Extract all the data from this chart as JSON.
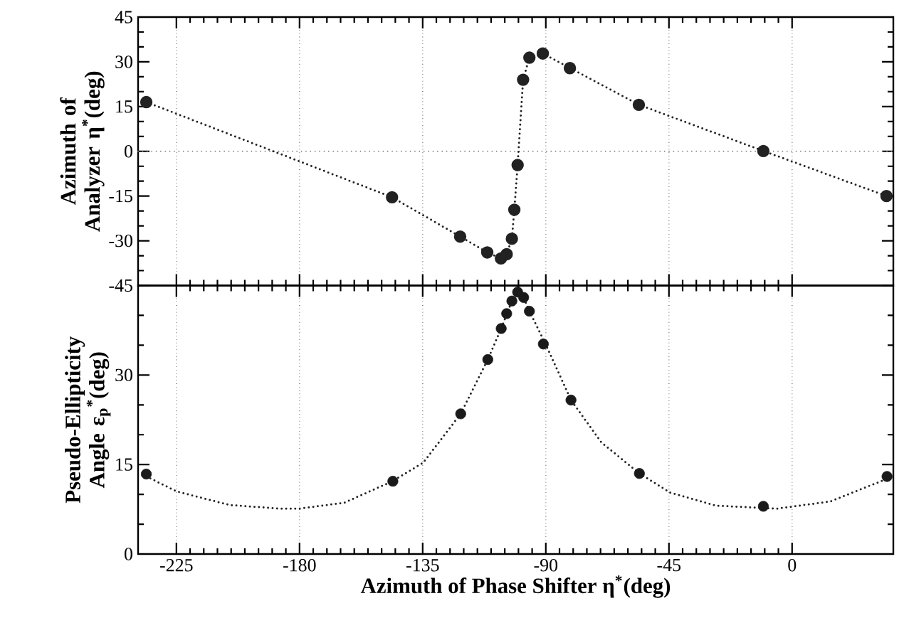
{
  "chart_data": [
    {
      "type": "line",
      "ylabel": "Azimuth of Analyzer η$^{*}$(deg)",
      "xlim": [
        -239,
        37
      ],
      "ylim": [
        -45,
        45
      ],
      "xticks": [
        -225,
        -180,
        -135,
        -90,
        -45,
        0
      ],
      "yticks": [
        -45,
        -30,
        -15,
        0,
        15,
        30,
        45
      ],
      "tick_labels": "y",
      "grid": "x",
      "marker": "circle",
      "line_style": "dotted",
      "ref_lines": [
        {
          "axis": "y",
          "value": 0,
          "line_style": "dotted",
          "color": "#888888"
        }
      ],
      "series": [
        {
          "color": "#222222",
          "x": [
            -236,
            -146.2,
            -121.3,
            -111.4,
            -106.4,
            -104.3,
            -102.4,
            -101.5,
            -100.3,
            -98.3,
            -96.0,
            -91.1,
            -81.2,
            -56.0,
            -10.5,
            34.5
          ],
          "values": [
            16.5,
            -15.4,
            -28.6,
            -33.9,
            -35.9,
            -34.5,
            -29.3,
            -19.6,
            -4.6,
            24.0,
            31.4,
            32.8,
            27.9,
            15.6,
            0.1,
            -15.0
          ]
        }
      ]
    },
    {
      "type": "scatter",
      "ylabel": "Pseudo-Ellipticity Angle ε$_{p}$$^{*}$(deg)",
      "xlabel": "Azimuth of Phase Shifter η$^{*}$(deg)",
      "xlim": [
        -239,
        37
      ],
      "ylim": [
        0,
        45
      ],
      "xticks": [
        -225,
        -180,
        -135,
        -90,
        -45,
        0
      ],
      "yticks": [
        0,
        15,
        30,
        {
          "value": 45,
          "label": null
        }
      ],
      "grid": "x",
      "series": [
        {
          "type": "scatter",
          "marker": "circle",
          "color": "#1a1a1a",
          "x": [
            -236,
            -145.9,
            -121.1,
            -111.2,
            -106.3,
            -104.3,
            -102.4,
            -100.3,
            -98.1,
            -96.0,
            -90.9,
            -80.8,
            -55.8,
            -10.5,
            34.7
          ],
          "values": [
            13.4,
            12.2,
            23.5,
            32.6,
            37.8,
            40.3,
            42.4,
            43.9,
            43.0,
            40.7,
            35.2,
            25.8,
            13.5,
            8.0,
            13.0
          ]
        },
        {
          "type": "line",
          "marker": "none",
          "line_style": "dotted",
          "color": "#222222",
          "x": [
            -236,
            -225,
            -205.5,
            -186.9,
            -180,
            -163.6,
            -146,
            -134.8,
            -121.1,
            -111.2,
            -106.3,
            -102.4,
            -99.5,
            -96.0,
            -90,
            -80.8,
            -69.7,
            -55.8,
            -44.6,
            -27.9,
            -5.5,
            14,
            34.7
          ],
          "values": [
            13.0,
            10.5,
            8.2,
            7.6,
            7.6,
            8.6,
            12.2,
            15.3,
            23.5,
            32.6,
            37.8,
            42.4,
            44.5,
            40.7,
            35.1,
            25.8,
            18.7,
            13.5,
            10.3,
            8.1,
            7.6,
            8.8,
            12.6
          ]
        }
      ]
    }
  ]
}
